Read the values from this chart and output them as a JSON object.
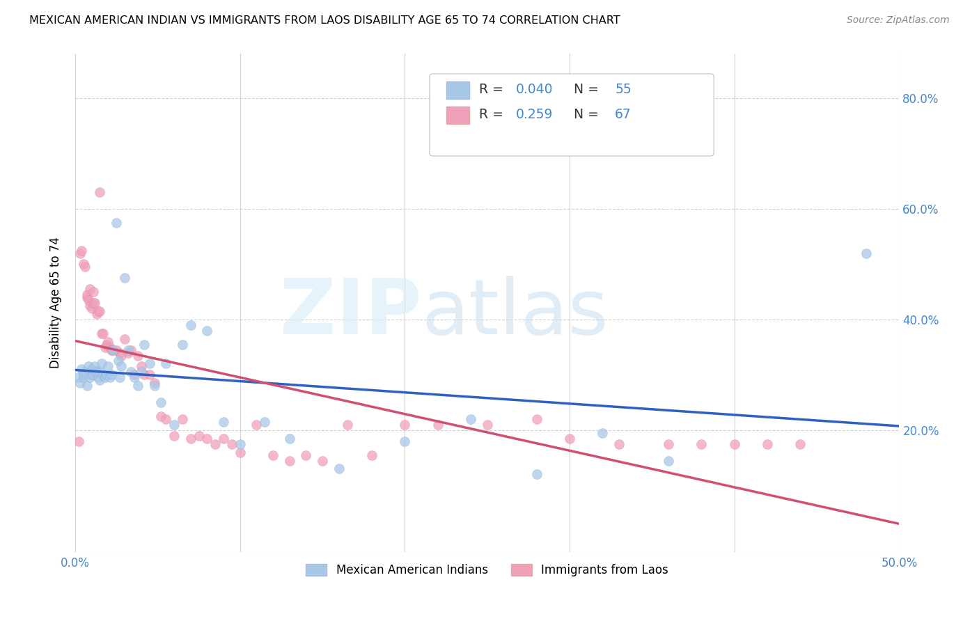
{
  "title": "MEXICAN AMERICAN INDIAN VS IMMIGRANTS FROM LAOS DISABILITY AGE 65 TO 74 CORRELATION CHART",
  "source": "Source: ZipAtlas.com",
  "ylabel": "Disability Age 65 to 74",
  "xlim": [
    0.0,
    0.5
  ],
  "ylim": [
    -0.02,
    0.88
  ],
  "ytick_vals": [
    0.2,
    0.4,
    0.6,
    0.8
  ],
  "ytick_labels": [
    "20.0%",
    "40.0%",
    "60.0%",
    "80.0%"
  ],
  "color_blue": "#a8c8e8",
  "color_pink": "#f0a0b8",
  "color_blue_line": "#3060c0",
  "color_pink_line": "#d05070",
  "color_dashed": "#c8a8b0",
  "label1": "Mexican American Indians",
  "label2": "Immigrants from Laos",
  "blue_x": [
    0.002,
    0.003,
    0.004,
    0.005,
    0.005,
    0.006,
    0.007,
    0.008,
    0.009,
    0.01,
    0.01,
    0.011,
    0.012,
    0.013,
    0.014,
    0.015,
    0.015,
    0.016,
    0.017,
    0.018,
    0.019,
    0.02,
    0.021,
    0.022,
    0.023,
    0.025,
    0.026,
    0.027,
    0.028,
    0.03,
    0.032,
    0.034,
    0.036,
    0.038,
    0.04,
    0.042,
    0.045,
    0.048,
    0.052,
    0.055,
    0.06,
    0.065,
    0.07,
    0.08,
    0.09,
    0.1,
    0.115,
    0.13,
    0.16,
    0.2,
    0.24,
    0.28,
    0.32,
    0.36,
    0.48
  ],
  "blue_y": [
    0.295,
    0.285,
    0.31,
    0.295,
    0.3,
    0.305,
    0.28,
    0.315,
    0.295,
    0.3,
    0.31,
    0.3,
    0.315,
    0.305,
    0.295,
    0.305,
    0.29,
    0.32,
    0.3,
    0.295,
    0.3,
    0.315,
    0.295,
    0.3,
    0.345,
    0.575,
    0.325,
    0.295,
    0.315,
    0.475,
    0.345,
    0.305,
    0.295,
    0.28,
    0.305,
    0.355,
    0.32,
    0.28,
    0.25,
    0.32,
    0.21,
    0.355,
    0.39,
    0.38,
    0.215,
    0.175,
    0.215,
    0.185,
    0.13,
    0.18,
    0.22,
    0.12,
    0.195,
    0.145,
    0.52
  ],
  "pink_x": [
    0.002,
    0.003,
    0.004,
    0.005,
    0.006,
    0.007,
    0.007,
    0.008,
    0.009,
    0.009,
    0.01,
    0.011,
    0.011,
    0.012,
    0.013,
    0.014,
    0.015,
    0.015,
    0.016,
    0.017,
    0.018,
    0.019,
    0.02,
    0.021,
    0.022,
    0.023,
    0.025,
    0.027,
    0.028,
    0.03,
    0.032,
    0.034,
    0.036,
    0.038,
    0.04,
    0.042,
    0.045,
    0.048,
    0.052,
    0.055,
    0.06,
    0.065,
    0.07,
    0.075,
    0.08,
    0.085,
    0.09,
    0.095,
    0.1,
    0.11,
    0.12,
    0.13,
    0.14,
    0.15,
    0.165,
    0.18,
    0.2,
    0.22,
    0.25,
    0.28,
    0.3,
    0.33,
    0.36,
    0.38,
    0.4,
    0.42,
    0.44
  ],
  "pink_y": [
    0.18,
    0.52,
    0.525,
    0.5,
    0.495,
    0.44,
    0.445,
    0.435,
    0.455,
    0.425,
    0.42,
    0.45,
    0.43,
    0.43,
    0.41,
    0.415,
    0.415,
    0.63,
    0.375,
    0.375,
    0.35,
    0.355,
    0.36,
    0.35,
    0.345,
    0.345,
    0.345,
    0.34,
    0.335,
    0.365,
    0.34,
    0.345,
    0.3,
    0.335,
    0.315,
    0.3,
    0.3,
    0.285,
    0.225,
    0.22,
    0.19,
    0.22,
    0.185,
    0.19,
    0.185,
    0.175,
    0.185,
    0.175,
    0.16,
    0.21,
    0.155,
    0.145,
    0.155,
    0.145,
    0.21,
    0.155,
    0.21,
    0.21,
    0.21,
    0.22,
    0.185,
    0.175,
    0.175,
    0.175,
    0.175,
    0.175,
    0.175
  ]
}
